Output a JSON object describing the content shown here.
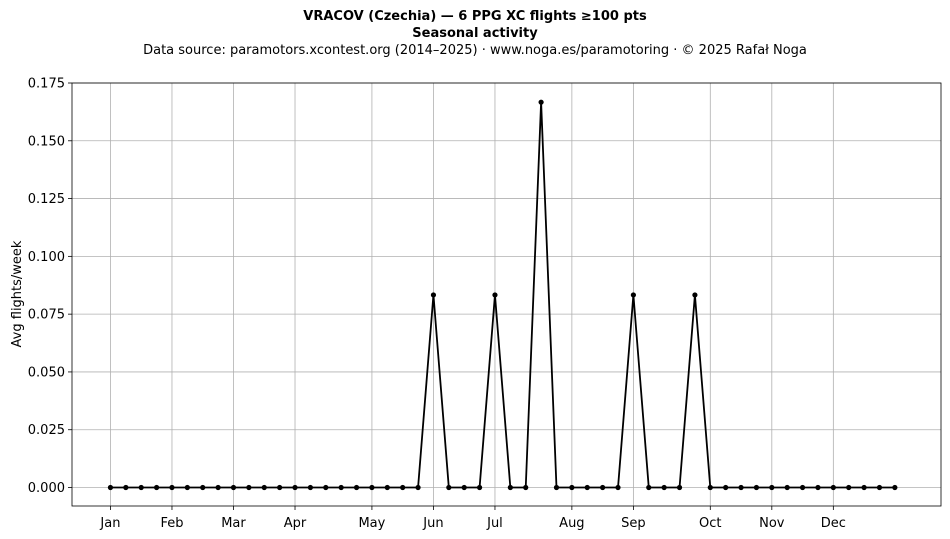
{
  "chart_data": {
    "type": "line",
    "title": "VRACOV (Czechia)  —  6 PPG XC flights ≥100 pts",
    "subtitle": "Seasonal activity",
    "source": "Data source: paramotors.xcontest.org (2014–2025)  ·  www.noga.es/paramotoring  ·  © 2025 Rafał Noga",
    "ylabel": "Avg flights/week",
    "xlabel": "",
    "x_ticks": [
      "Jan",
      "Feb",
      "Mar",
      "Apr",
      "May",
      "Jun",
      "Jul",
      "Aug",
      "Sep",
      "Oct",
      "Nov",
      "Dec"
    ],
    "x_tick_weeks": [
      1,
      5,
      9,
      13,
      18,
      22,
      26,
      31,
      35,
      40,
      44,
      48
    ],
    "y_ticks": [
      "0.000",
      "0.025",
      "0.050",
      "0.075",
      "0.100",
      "0.125",
      "0.150",
      "0.175"
    ],
    "ylim": [
      -0.008,
      0.175
    ],
    "xlim": [
      -1.5,
      55
    ],
    "grid": true,
    "marker": "dot",
    "color": "#000000",
    "x": [
      1,
      2,
      3,
      4,
      5,
      6,
      7,
      8,
      9,
      10,
      11,
      12,
      13,
      14,
      15,
      16,
      17,
      18,
      19,
      20,
      21,
      22,
      23,
      24,
      25,
      26,
      27,
      28,
      29,
      30,
      31,
      32,
      33,
      34,
      35,
      36,
      37,
      38,
      39,
      40,
      41,
      42,
      43,
      44,
      45,
      46,
      47,
      48,
      49,
      50,
      51,
      52
    ],
    "values": [
      0,
      0,
      0,
      0,
      0,
      0,
      0,
      0,
      0,
      0,
      0,
      0,
      0,
      0,
      0,
      0,
      0,
      0,
      0,
      0,
      0,
      0.0833,
      0,
      0,
      0,
      0.0833,
      0,
      0,
      0.1667,
      0,
      0,
      0,
      0,
      0,
      0.0833,
      0,
      0,
      0,
      0.0833,
      0,
      0,
      0,
      0,
      0,
      0,
      0,
      0,
      0,
      0,
      0,
      0,
      0
    ]
  }
}
